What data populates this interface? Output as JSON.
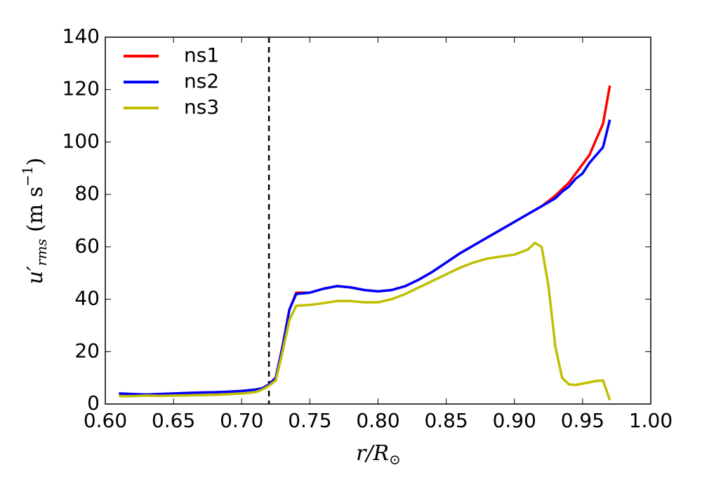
{
  "chart_data": {
    "type": "line",
    "xlabel": [
      "r/R",
      "⊙"
    ],
    "ylabel": [
      "u′",
      "rms",
      " (m s",
      "−1",
      ")"
    ],
    "x": [
      0.61,
      0.62,
      0.63,
      0.64,
      0.65,
      0.66,
      0.67,
      0.68,
      0.69,
      0.7,
      0.71,
      0.715,
      0.72,
      0.725,
      0.73,
      0.735,
      0.74,
      0.75,
      0.76,
      0.77,
      0.78,
      0.79,
      0.8,
      0.81,
      0.82,
      0.83,
      0.84,
      0.85,
      0.86,
      0.87,
      0.88,
      0.89,
      0.9,
      0.91,
      0.915,
      0.92,
      0.925,
      0.93,
      0.935,
      0.94,
      0.945,
      0.95,
      0.955,
      0.96,
      0.965,
      0.97
    ],
    "series": [
      {
        "name": "ns1",
        "color": "#ff0000",
        "values": [
          4,
          3.8,
          3.6,
          3.8,
          4,
          4.2,
          4.4,
          4.5,
          4.7,
          5,
          5.5,
          6,
          7.5,
          10,
          22,
          36,
          42.5,
          42.5,
          44,
          45,
          44.5,
          43.5,
          43,
          43.5,
          45,
          47.5,
          50.5,
          54,
          57.5,
          60.5,
          63.5,
          66.5,
          69.5,
          72.5,
          74,
          75.5,
          77.5,
          79.5,
          82,
          84.5,
          88,
          91.5,
          95,
          101,
          107,
          121.5
        ]
      },
      {
        "name": "ns2",
        "color": "#0000ff",
        "values": [
          4,
          3.8,
          3.6,
          3.8,
          4,
          4.2,
          4.4,
          4.5,
          4.7,
          5,
          5.5,
          6,
          7.5,
          10,
          22,
          36,
          42,
          42.5,
          44,
          45,
          44.5,
          43.5,
          43,
          43.5,
          45,
          47.5,
          50.5,
          54,
          57.5,
          60.5,
          63.5,
          66.5,
          69.5,
          72.5,
          74,
          75.5,
          77,
          78.5,
          81,
          83,
          86,
          88,
          92,
          95,
          98,
          108.5
        ]
      },
      {
        "name": "ns3",
        "color": "#bfbf00",
        "values": [
          3,
          3,
          3.2,
          3.1,
          3.2,
          3.3,
          3.4,
          3.5,
          3.7,
          4,
          4.5,
          5.5,
          7,
          9,
          20,
          32,
          37.5,
          37.8,
          38.5,
          39.3,
          39.3,
          38.8,
          38.8,
          40,
          42,
          44.5,
          47,
          49.5,
          52,
          54,
          55.5,
          56.3,
          57,
          59,
          61.5,
          60,
          45,
          22,
          10,
          7.5,
          7.3,
          7.8,
          8.3,
          8.8,
          9,
          1.5
        ]
      }
    ],
    "vline": 0.72,
    "xlim": [
      0.6,
      1.0
    ],
    "xticks": [
      {
        "value": 0.6,
        "label": "0.60"
      },
      {
        "value": 0.65,
        "label": "0.65"
      },
      {
        "value": 0.7,
        "label": "0.70"
      },
      {
        "value": 0.75,
        "label": "0.75"
      },
      {
        "value": 0.8,
        "label": "0.80"
      },
      {
        "value": 0.85,
        "label": "0.85"
      },
      {
        "value": 0.9,
        "label": "0.90"
      },
      {
        "value": 0.95,
        "label": "0.95"
      },
      {
        "value": 1.0,
        "label": "1.00"
      }
    ],
    "ylim": [
      0,
      140
    ],
    "yticks": [
      0,
      20,
      40,
      60,
      80,
      100,
      120,
      140
    ],
    "legend": "upper left"
  }
}
